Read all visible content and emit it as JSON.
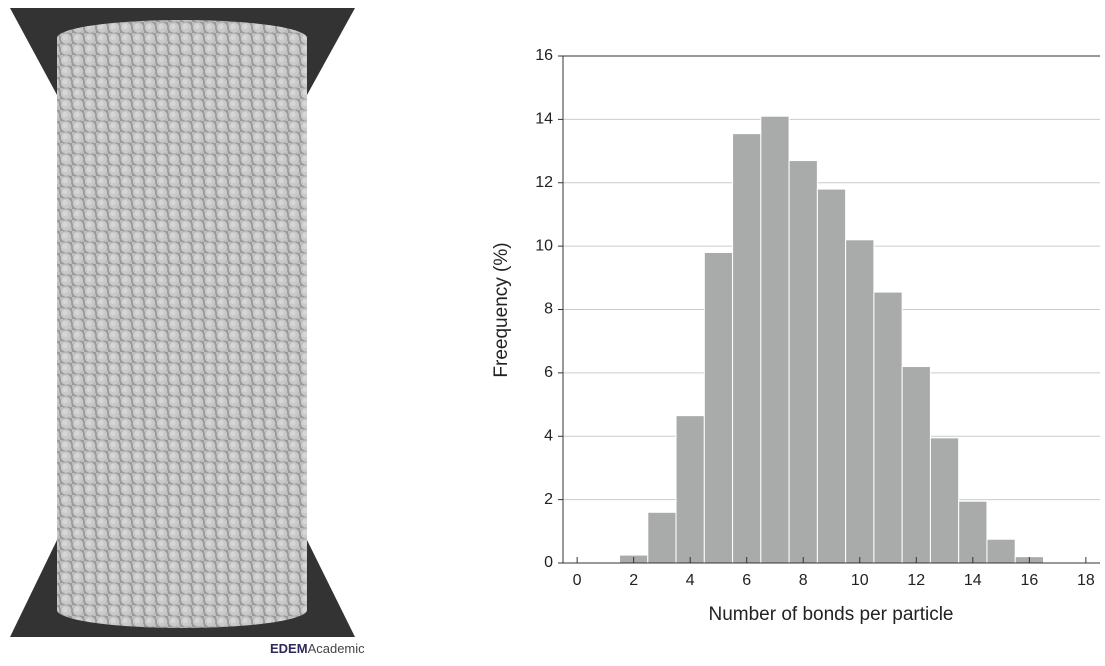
{
  "chart_data": {
    "type": "histogram",
    "xlabel": "Number of bonds per particle",
    "ylabel": "Freequency (%)",
    "bins": [
      1.5,
      2.5,
      3.5,
      4.5,
      5.5,
      6.5,
      7.5,
      8.5,
      9.5,
      10.5,
      11.5,
      12.5,
      13.5,
      14.5,
      15.5,
      16.5
    ],
    "values": [
      0.25,
      1.6,
      4.65,
      9.8,
      13.55,
      14.1,
      12.7,
      11.8,
      10.2,
      8.55,
      6.2,
      3.95,
      1.95,
      0.75,
      0.2
    ],
    "color": "#a9abab",
    "xlim": [
      -0.5,
      18.5
    ],
    "xticks": [
      0,
      2,
      4,
      6,
      8,
      10,
      12,
      14,
      16,
      18
    ],
    "ylim": [
      0,
      16
    ],
    "yticks": [
      0,
      2,
      4,
      6,
      8,
      10,
      12,
      14,
      16
    ],
    "grid": true
  },
  "logo": {
    "brand": "EDEM",
    "suffix": "Academic"
  }
}
